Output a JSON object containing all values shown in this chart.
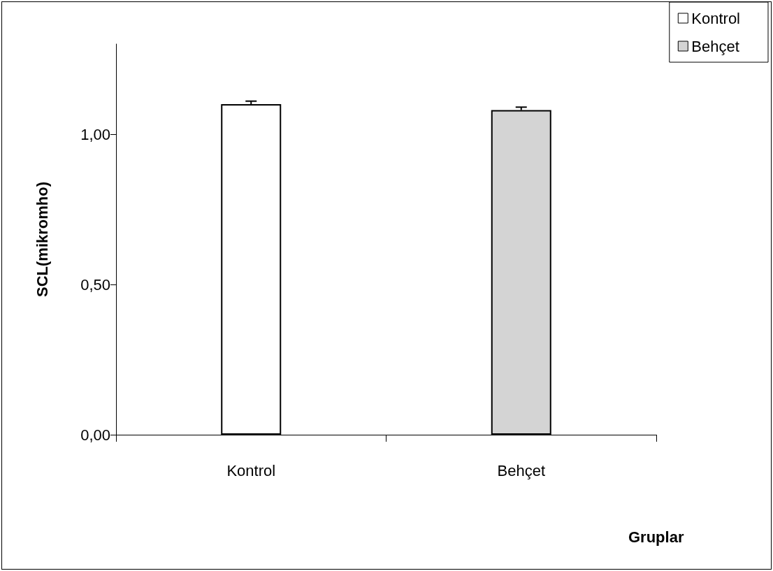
{
  "chart_data": {
    "type": "bar",
    "xlabel": "Gruplar",
    "ylabel": "SCL(mikromho)",
    "categories": [
      "Kontrol",
      "Behçet"
    ],
    "series": [
      {
        "name": "Kontrol",
        "color": "#ffffff",
        "values": [
          1.1,
          null
        ],
        "errors": [
          0.01,
          null
        ]
      },
      {
        "name": "Behçet",
        "color": "#d4d4d4",
        "values": [
          null,
          1.08
        ],
        "errors": [
          null,
          0.01
        ]
      }
    ],
    "ylim": [
      0,
      1.3
    ],
    "yticks": [
      {
        "value": 0,
        "label": "0,00"
      },
      {
        "value": 0.5,
        "label": "0,50"
      },
      {
        "value": 1.0,
        "label": "1,00"
      }
    ],
    "grid": false,
    "legend": "top right"
  }
}
